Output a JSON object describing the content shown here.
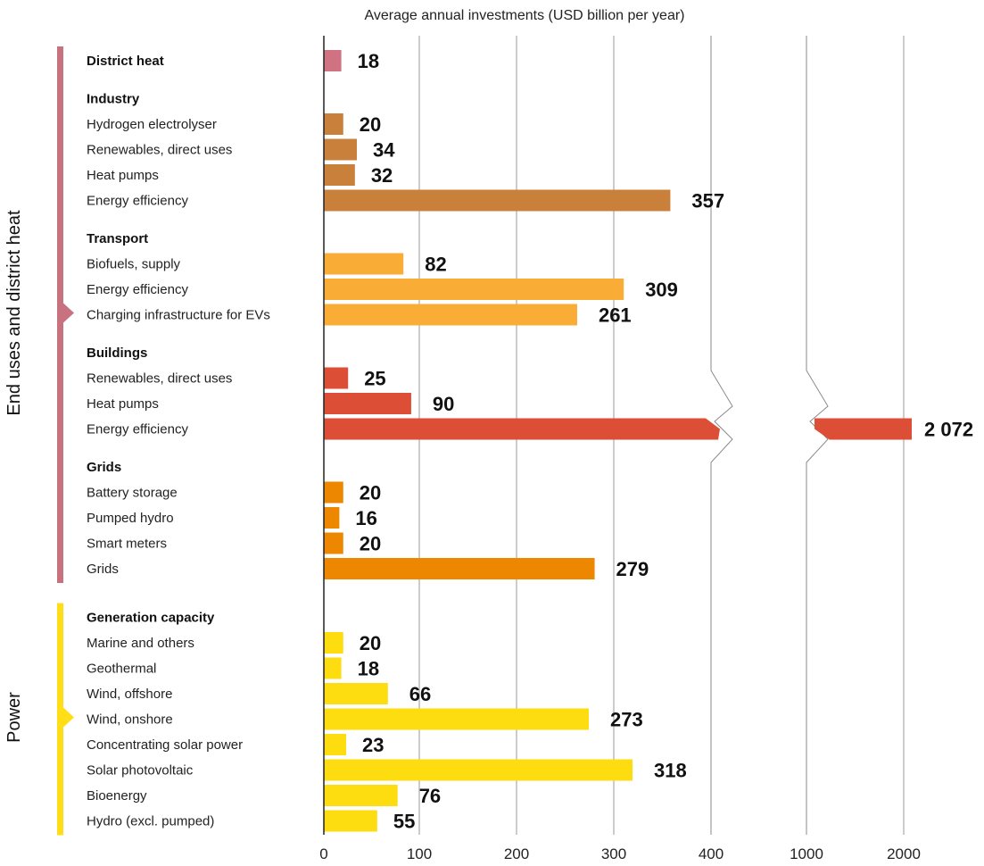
{
  "chart_data": {
    "type": "bar",
    "orientation": "horizontal",
    "xlabel": "Average annual investments (USD billion per year)",
    "x_ticks": [
      "0",
      "100",
      "200",
      "300",
      "400",
      "1000",
      "2000"
    ],
    "axis_break": "between 400 and 1000",
    "sections": [
      {
        "name": "End uses and district heat",
        "color": "#c8727f",
        "groups": [
          {
            "name": "District heat",
            "color": "#d07282",
            "items": [
              {
                "label": "",
                "value": 18,
                "value_label": "18"
              }
            ]
          },
          {
            "name": "Industry",
            "color": "#c8803a",
            "items": [
              {
                "label": "Hydrogen electrolyser",
                "value": 20,
                "value_label": "20"
              },
              {
                "label": "Renewables, direct uses",
                "value": 34,
                "value_label": "34"
              },
              {
                "label": "Heat pumps",
                "value": 32,
                "value_label": "32"
              },
              {
                "label": "Energy efficiency",
                "value": 357,
                "value_label": "357"
              }
            ]
          },
          {
            "name": "Transport",
            "color": "#f9ac36",
            "items": [
              {
                "label": "Biofuels, supply",
                "value": 82,
                "value_label": "82"
              },
              {
                "label": "Energy efficiency",
                "value": 309,
                "value_label": "309"
              },
              {
                "label": "Charging infrastructure for EVs",
                "value": 261,
                "value_label": "261"
              }
            ]
          },
          {
            "name": "Buildings",
            "color": "#dd4e37",
            "items": [
              {
                "label": "Renewables, direct uses",
                "value": 25,
                "value_label": "25"
              },
              {
                "label": "Heat pumps",
                "value": 90,
                "value_label": "90"
              },
              {
                "label": "Energy efficiency",
                "value": 2072,
                "value_label": "2 072",
                "broken": true
              }
            ]
          },
          {
            "name": "Grids",
            "color": "#ee8700",
            "items": [
              {
                "label": "Battery storage",
                "value": 20,
                "value_label": "20"
              },
              {
                "label": "Pumped hydro",
                "value": 16,
                "value_label": "16"
              },
              {
                "label": "Smart meters",
                "value": 20,
                "value_label": "20"
              },
              {
                "label": "Grids",
                "value": 279,
                "value_label": "279"
              }
            ]
          }
        ]
      },
      {
        "name": "Power",
        "color": "#ffde17",
        "groups": [
          {
            "name": "Generation capacity",
            "color": "#fedd10",
            "items": [
              {
                "label": "Marine and others",
                "value": 20,
                "value_label": "20"
              },
              {
                "label": "Geothermal",
                "value": 18,
                "value_label": "18"
              },
              {
                "label": "Wind, offshore",
                "value": 66,
                "value_label": "66"
              },
              {
                "label": "Wind, onshore",
                "value": 273,
                "value_label": "273"
              },
              {
                "label": "Concentrating solar power",
                "value": 23,
                "value_label": "23"
              },
              {
                "label": "Solar photovoltaic",
                "value": 318,
                "value_label": "318"
              },
              {
                "label": "Bioenergy",
                "value": 76,
                "value_label": "76"
              },
              {
                "label": "Hydro (excl. pumped)",
                "value": 55,
                "value_label": "55"
              }
            ]
          }
        ]
      }
    ]
  }
}
